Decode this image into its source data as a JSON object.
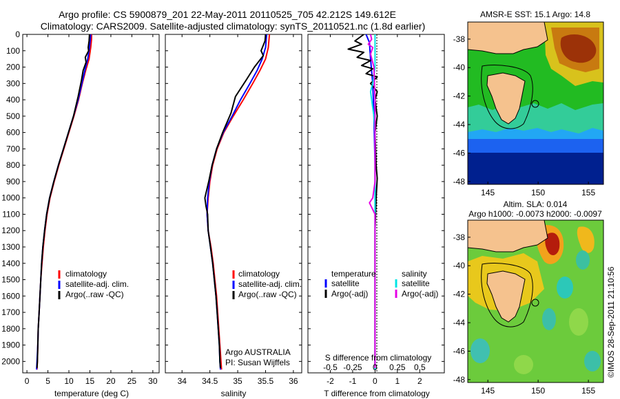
{
  "title_line1": "Argo profile: CS 5900879_201 22-May-2011 20110525_705 42.212S 149.612E",
  "title_line2": "Climatology: CARS2009. Satellite-adjusted climatology: synTS_20110521.nc (1.8d earlier)",
  "side_stamp": "©IMOS 28-Sep-2011 21:10:56",
  "colors": {
    "climatology": "#ff0000",
    "satellite": "#0000ff",
    "argo": "#000000",
    "salinity_satellite": "#00e5e5",
    "salinity_argo": "#e600e6"
  },
  "chart_data": [
    {
      "type": "line",
      "id": "temperature",
      "xlabel": "temperature (deg C)",
      "ylabel": "",
      "xlim": [
        -1,
        31.5
      ],
      "ylim": [
        2070,
        0
      ],
      "xticks": [
        0,
        5,
        10,
        15,
        20,
        25,
        30
      ],
      "yticks": [
        0,
        100,
        200,
        300,
        400,
        500,
        600,
        700,
        800,
        900,
        1000,
        1100,
        1200,
        1300,
        1400,
        1500,
        1600,
        1700,
        1800,
        1900,
        2000
      ],
      "legend": [
        "climatology",
        "satellite-adj. clim.",
        "Argo(..raw -QC)"
      ],
      "legend_position": "lower-right",
      "series": [
        {
          "name": "climatology",
          "color": "#ff0000",
          "points": [
            [
              15.4,
              0
            ],
            [
              15.4,
              30
            ],
            [
              15.2,
              80
            ],
            [
              14.8,
              150
            ],
            [
              14.0,
              220
            ],
            [
              13.2,
              300
            ],
            [
              12.3,
              400
            ],
            [
              11.2,
              500
            ],
            [
              10.0,
              600
            ],
            [
              8.8,
              700
            ],
            [
              7.6,
              800
            ],
            [
              6.5,
              900
            ],
            [
              5.5,
              1000
            ],
            [
              4.8,
              1100
            ],
            [
              4.3,
              1200
            ],
            [
              3.9,
              1300
            ],
            [
              3.6,
              1400
            ],
            [
              3.3,
              1500
            ],
            [
              3.1,
              1600
            ],
            [
              2.9,
              1700
            ],
            [
              2.7,
              1800
            ],
            [
              2.6,
              1900
            ],
            [
              2.5,
              2000
            ],
            [
              2.4,
              2050
            ]
          ]
        },
        {
          "name": "satellite-adj. clim.",
          "color": "#0000ff",
          "points": [
            [
              15.2,
              0
            ],
            [
              15.1,
              30
            ],
            [
              14.9,
              80
            ],
            [
              14.5,
              150
            ],
            [
              13.8,
              220
            ],
            [
              13.1,
              300
            ],
            [
              12.2,
              400
            ],
            [
              11.1,
              500
            ],
            [
              9.9,
              600
            ],
            [
              8.7,
              700
            ],
            [
              7.5,
              800
            ],
            [
              6.4,
              900
            ],
            [
              5.4,
              1000
            ],
            [
              4.7,
              1100
            ],
            [
              4.2,
              1200
            ],
            [
              3.8,
              1300
            ],
            [
              3.5,
              1400
            ],
            [
              3.3,
              1500
            ],
            [
              3.1,
              1600
            ],
            [
              2.9,
              1700
            ],
            [
              2.7,
              1800
            ],
            [
              2.6,
              1900
            ],
            [
              2.4,
              2000
            ],
            [
              2.3,
              2050
            ]
          ]
        },
        {
          "name": "Argo(..raw -QC)",
          "color": "#000000",
          "points": [
            [
              14.9,
              0
            ],
            [
              14.8,
              40
            ],
            [
              14.6,
              80
            ],
            [
              14.7,
              100
            ],
            [
              13.9,
              140
            ],
            [
              14.1,
              170
            ],
            [
              13.4,
              220
            ],
            [
              13.0,
              280
            ],
            [
              12.2,
              380
            ],
            [
              11.1,
              500
            ],
            [
              9.9,
              600
            ],
            [
              8.7,
              700
            ],
            [
              7.5,
              800
            ],
            [
              6.4,
              900
            ],
            [
              5.4,
              1000
            ],
            [
              4.7,
              1100
            ],
            [
              4.2,
              1200
            ],
            [
              3.8,
              1300
            ],
            [
              3.5,
              1400
            ],
            [
              3.3,
              1500
            ],
            [
              3.1,
              1600
            ],
            [
              2.9,
              1700
            ],
            [
              2.7,
              1800
            ],
            [
              2.6,
              1900
            ],
            [
              2.5,
              2000
            ],
            [
              2.4,
              2040
            ]
          ]
        }
      ]
    },
    {
      "type": "line",
      "id": "salinity",
      "xlabel": "salinity",
      "ylabel": "",
      "xlim": [
        33.7,
        36.15
      ],
      "ylim": [
        2070,
        0
      ],
      "xticks": [
        34,
        34.5,
        35,
        35.5,
        36
      ],
      "legend": [
        "climatology",
        "satellite-adj. clim.",
        "Argo(..raw -QC)"
      ],
      "legend_position": "lower-right",
      "annotations": [
        "Argo AUSTRALIA",
        "PI: Susan Wijffels"
      ],
      "series": [
        {
          "name": "climatology",
          "color": "#ff0000",
          "points": [
            [
              35.57,
              0
            ],
            [
              35.55,
              80
            ],
            [
              35.5,
              150
            ],
            [
              35.4,
              220
            ],
            [
              35.27,
              300
            ],
            [
              35.1,
              400
            ],
            [
              34.92,
              500
            ],
            [
              34.75,
              600
            ],
            [
              34.63,
              700
            ],
            [
              34.55,
              800
            ],
            [
              34.5,
              900
            ],
            [
              34.47,
              1000
            ],
            [
              34.45,
              1100
            ],
            [
              34.47,
              1200
            ],
            [
              34.52,
              1300
            ],
            [
              34.56,
              1400
            ],
            [
              34.59,
              1500
            ],
            [
              34.62,
              1600
            ],
            [
              34.64,
              1700
            ],
            [
              34.66,
              1800
            ],
            [
              34.68,
              1900
            ],
            [
              34.7,
              2000
            ],
            [
              34.71,
              2050
            ]
          ]
        },
        {
          "name": "satellite-adj. clim.",
          "color": "#0000ff",
          "points": [
            [
              35.52,
              0
            ],
            [
              35.5,
              80
            ],
            [
              35.44,
              150
            ],
            [
              35.35,
              220
            ],
            [
              35.22,
              300
            ],
            [
              35.05,
              400
            ],
            [
              34.9,
              500
            ],
            [
              34.74,
              600
            ],
            [
              34.62,
              700
            ],
            [
              34.54,
              800
            ],
            [
              34.49,
              900
            ],
            [
              34.46,
              1000
            ],
            [
              34.45,
              1100
            ],
            [
              34.47,
              1200
            ],
            [
              34.51,
              1300
            ],
            [
              34.55,
              1400
            ],
            [
              34.58,
              1500
            ],
            [
              34.61,
              1600
            ],
            [
              34.63,
              1700
            ],
            [
              34.65,
              1800
            ],
            [
              34.67,
              1900
            ],
            [
              34.68,
              2000
            ],
            [
              34.69,
              2050
            ]
          ]
        },
        {
          "name": "Argo(..raw -QC)",
          "color": "#000000",
          "points": [
            [
              35.5,
              0
            ],
            [
              35.49,
              40
            ],
            [
              35.42,
              100
            ],
            [
              35.46,
              130
            ],
            [
              35.3,
              200
            ],
            [
              35.15,
              280
            ],
            [
              34.96,
              380
            ],
            [
              34.88,
              480
            ],
            [
              34.73,
              600
            ],
            [
              34.62,
              700
            ],
            [
              34.54,
              800
            ],
            [
              34.48,
              900
            ],
            [
              34.41,
              1000
            ],
            [
              34.43,
              1050
            ],
            [
              34.46,
              1100
            ],
            [
              34.47,
              1200
            ],
            [
              34.51,
              1300
            ],
            [
              34.55,
              1400
            ],
            [
              34.58,
              1500
            ],
            [
              34.61,
              1600
            ],
            [
              34.63,
              1700
            ],
            [
              34.65,
              1800
            ],
            [
              34.67,
              1900
            ],
            [
              34.68,
              2000
            ],
            [
              34.69,
              2040
            ]
          ]
        }
      ]
    },
    {
      "type": "line",
      "id": "difference",
      "xlabel": "T difference from climatology",
      "x2label": "S difference from climatology",
      "ylabel": "",
      "xlim": [
        -3,
        3.1
      ],
      "ylim": [
        2070,
        0
      ],
      "xticks": [
        -2,
        -1,
        0,
        1,
        2
      ],
      "x2ticks": [
        "-0.5",
        "-0.25",
        "0",
        "0.25",
        "0.5"
      ],
      "legend_headers": [
        "temperature",
        "salinity"
      ],
      "legend": [
        "satellite",
        "Argo(-adj)",
        "satellite",
        "Argo(-adj)"
      ],
      "legend_position": "lower-center",
      "series": [
        {
          "name": "temperature satellite",
          "color": "#0000ff",
          "points": [
            [
              -0.4,
              0
            ],
            [
              -0.25,
              50
            ],
            [
              -0.2,
              150
            ],
            [
              -0.1,
              300
            ],
            [
              -0.05,
              500
            ],
            [
              0,
              800
            ],
            [
              0,
              1200
            ],
            [
              0,
              2050
            ]
          ]
        },
        {
          "name": "temperature Argo(-adj)",
          "color": "#000000",
          "points": [
            [
              -0.5,
              0
            ],
            [
              -0.9,
              40
            ],
            [
              -0.6,
              60
            ],
            [
              -1.2,
              90
            ],
            [
              -0.5,
              110
            ],
            [
              -0.8,
              140
            ],
            [
              -0.2,
              160
            ],
            [
              -0.6,
              190
            ],
            [
              -0.1,
              210
            ],
            [
              -0.4,
              240
            ],
            [
              0.1,
              260
            ],
            [
              -0.2,
              300
            ],
            [
              0.1,
              350
            ],
            [
              0,
              400
            ],
            [
              0.1,
              500
            ],
            [
              0,
              600
            ],
            [
              0.05,
              800
            ],
            [
              0.1,
              880
            ],
            [
              0.05,
              1000
            ],
            [
              0,
              1200
            ],
            [
              0,
              2040
            ]
          ]
        },
        {
          "name": "salinity satellite",
          "color": "#00e5e5",
          "points": [
            [
              0,
              0
            ],
            [
              0,
              200
            ],
            [
              -0.1,
              300
            ],
            [
              -0.2,
              350
            ],
            [
              -0.15,
              400
            ],
            [
              -0.1,
              450
            ],
            [
              -0.05,
              500
            ],
            [
              0,
              600
            ],
            [
              0,
              2050
            ]
          ]
        },
        {
          "name": "salinity Argo(-adj)",
          "color": "#e600e6",
          "points": [
            [
              -0.2,
              0
            ],
            [
              -0.15,
              30
            ],
            [
              -0.3,
              60
            ],
            [
              -0.1,
              80
            ],
            [
              -0.2,
              120
            ],
            [
              -0.05,
              200
            ],
            [
              0,
              400
            ],
            [
              0,
              900
            ],
            [
              -0.1,
              1000
            ],
            [
              -0.25,
              1030
            ],
            [
              0,
              1100
            ],
            [
              0,
              1200
            ],
            [
              0,
              2040
            ]
          ]
        }
      ]
    },
    {
      "type": "heatmap",
      "id": "sst_map",
      "title": "AMSR-E SST: 15.1  Argo: 14.8",
      "xlim": [
        143,
        156.5
      ],
      "ylim": [
        -48.2,
        -36.8
      ],
      "xticks": [
        145,
        150,
        155
      ],
      "yticks": [
        -38,
        -40,
        -42,
        -44,
        -46,
        -48
      ],
      "float_position": [
        149.6,
        -42.2
      ]
    },
    {
      "type": "heatmap",
      "id": "sla_map",
      "title_line1": "Altim. SLA: 0.014",
      "title_line2": "Argo h1000: -0.0073 h2000: -0.0097",
      "xlim": [
        143,
        156.5
      ],
      "ylim": [
        -48.2,
        -36.8
      ],
      "xticks": [
        145,
        150,
        155
      ],
      "yticks": [
        -38,
        -40,
        -42,
        -44,
        -46,
        -48
      ],
      "float_position": [
        149.6,
        -42.2
      ]
    }
  ]
}
